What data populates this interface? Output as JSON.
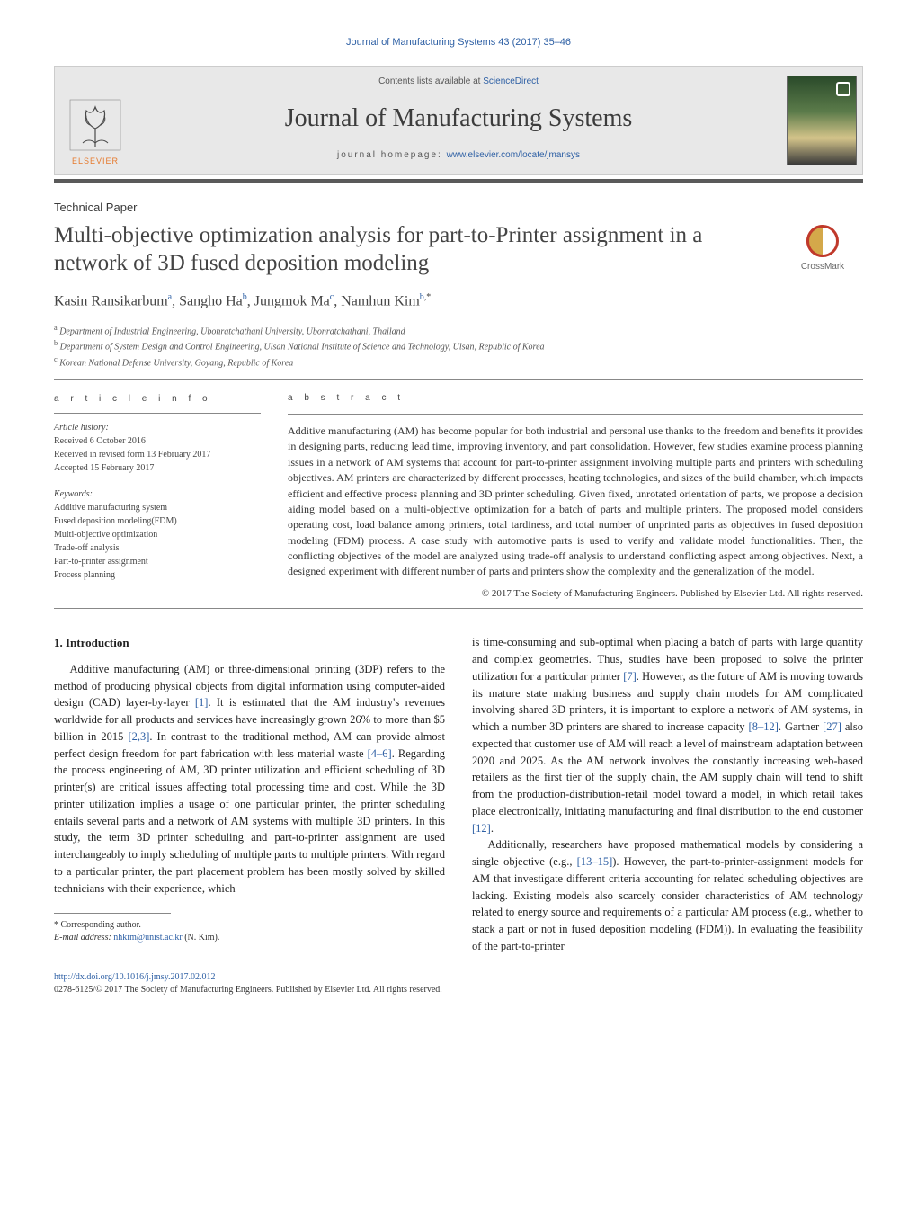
{
  "colors": {
    "link": "#2d5fa4",
    "text": "#222222",
    "rule": "#5a5a5a",
    "gray_band_bg": "#e8e8e8",
    "elsevier_orange": "#e67a2e"
  },
  "running_head": "Journal of Manufacturing Systems 43 (2017) 35–46",
  "masthead": {
    "contents_prefix": "Contents lists available at ",
    "contents_link": "ScienceDirect",
    "journal_name": "Journal of Manufacturing Systems",
    "homepage_prefix": "journal homepage: ",
    "homepage_url": "www.elsevier.com/locate/jmansys",
    "publisher_word": "ELSEVIER"
  },
  "paper_type": "Technical Paper",
  "title": "Multi-objective optimization analysis for part-to-Printer assignment in a network of 3D fused deposition modeling",
  "crossmark_label": "CrossMark",
  "authors_html": "Kasin Ransikarbum",
  "authors": [
    {
      "name": "Kasin Ransikarbum",
      "marks": "a"
    },
    {
      "name": "Sangho Ha",
      "marks": "b"
    },
    {
      "name": "Jungmok Ma",
      "marks": "c"
    },
    {
      "name": "Namhun Kim",
      "marks": "b,*"
    }
  ],
  "affiliations": [
    {
      "mark": "a",
      "text": "Department of Industrial Engineering, Ubonratchathani University, Ubonratchathani, Thailand"
    },
    {
      "mark": "b",
      "text": "Department of System Design and Control Engineering, Ulsan National Institute of Science and Technology, Ulsan, Republic of Korea"
    },
    {
      "mark": "c",
      "text": "Korean National Defense University, Goyang, Republic of Korea"
    }
  ],
  "article_info": {
    "head": "a r t i c l e   i n f o",
    "history_head": "Article history:",
    "history": [
      "Received 6 October 2016",
      "Received in revised form 13 February 2017",
      "Accepted 15 February 2017"
    ],
    "keywords_head": "Keywords:",
    "keywords": [
      "Additive manufacturing system",
      "Fused deposition modeling(FDM)",
      "Multi-objective optimization",
      "Trade-off analysis",
      "Part-to-printer assignment",
      "Process planning"
    ]
  },
  "abstract": {
    "head": "a b s t r a c t",
    "text": "Additive manufacturing (AM) has become popular for both industrial and personal use thanks to the freedom and benefits it provides in designing parts, reducing lead time, improving inventory, and part consolidation. However, few studies examine process planning issues in a network of AM systems that account for part-to-printer assignment involving multiple parts and printers with scheduling objectives. AM printers are characterized by different processes, heating technologies, and sizes of the build chamber, which impacts efficient and effective process planning and 3D printer scheduling. Given fixed, unrotated orientation of parts, we propose a decision aiding model based on a multi-objective optimization for a batch of parts and multiple printers. The proposed model considers operating cost, load balance among printers, total tardiness, and total number of unprinted parts as objectives in fused deposition modeling (FDM) process. A case study with automotive parts is used to verify and validate model functionalities. Then, the conflicting objectives of the model are analyzed using trade-off analysis to understand conflicting aspect among objectives. Next, a designed experiment with different number of parts and printers show the complexity and the generalization of the model.",
    "copyright": "© 2017 The Society of Manufacturing Engineers. Published by Elsevier Ltd. All rights reserved."
  },
  "sections": {
    "intro_head": "1.  Introduction",
    "intro_p1": "Additive manufacturing (AM) or three-dimensional printing (3DP) refers to the method of producing physical objects from digital information using computer-aided design (CAD) layer-by-layer [1]. It is estimated that the AM industry's revenues worldwide for all products and services have increasingly grown 26% to more than $5 billion in 2015 [2,3]. In contrast to the traditional method, AM can provide almost perfect design freedom for part fabrication with less material waste [4–6]. Regarding the process engineering of AM, 3D printer utilization and efficient scheduling of 3D printer(s) are critical issues affecting total processing time and cost. While the 3D printer utilization implies a usage of one particular printer, the printer scheduling entails several parts and a network of AM systems with multiple 3D printers. In this study, the term 3D printer scheduling and part-to-printer assignment are used interchangeably to imply scheduling of multiple parts to multiple printers. With regard to a particular printer, the part placement problem has been mostly solved by skilled technicians with their experience, which",
    "intro_p2": "is time-consuming and sub-optimal when placing a batch of parts with large quantity and complex geometries. Thus, studies have been proposed to solve the printer utilization for a particular printer [7]. However, as the future of AM is moving towards its mature state making business and supply chain models for AM complicated involving shared 3D printers, it is important to explore a network of AM systems, in which a number 3D printers are shared to increase capacity [8–12]. Gartner [27] also expected that customer use of AM will reach a level of mainstream adaptation between 2020 and 2025. As the AM network involves the constantly increasing web-based retailers as the first tier of the supply chain, the AM supply chain will tend to shift from the production-distribution-retail model toward a model, in which retail takes place electronically, initiating manufacturing and final distribution to the end customer [12].",
    "intro_p3": "Additionally, researchers have proposed mathematical models by considering a single objective (e.g., [13–15]). However, the part-to-printer-assignment models for AM that investigate different criteria accounting for related scheduling objectives are lacking. Existing models also scarcely consider characteristics of AM technology related to energy source and requirements of a particular AM process (e.g., whether to stack a part or not in fused deposition modeling (FDM)). In evaluating the feasibility of the part-to-printer"
  },
  "footnote": {
    "corr_label": "* Corresponding author.",
    "email_label": "E-mail address: ",
    "email": "nhkim@unist.ac.kr",
    "email_tail": " (N. Kim)."
  },
  "doi": {
    "url": "http://dx.doi.org/10.1016/j.jmsy.2017.02.012",
    "issn_line": "0278-6125/© 2017 The Society of Manufacturing Engineers. Published by Elsevier Ltd. All rights reserved."
  }
}
